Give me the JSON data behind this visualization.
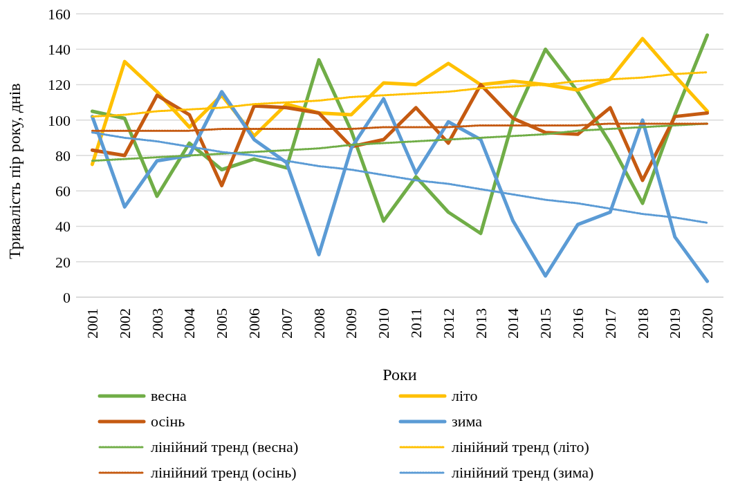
{
  "chart_data": {
    "type": "line",
    "xlabel": "Роки",
    "ylabel": "Тривалість пір року, днів",
    "categories": [
      "2001",
      "2002",
      "2003",
      "2004",
      "2005",
      "2006",
      "2007",
      "2008",
      "2009",
      "2010",
      "2011",
      "2012",
      "2013",
      "2014",
      "2015",
      "2016",
      "2017",
      "2018",
      "2019",
      "2020"
    ],
    "series": [
      {
        "name": "весна",
        "color": "#70ad47",
        "values": [
          105,
          101,
          57,
          87,
          72,
          78,
          73,
          134,
          94,
          43,
          68,
          48,
          36,
          100,
          140,
          116,
          87,
          53,
          103,
          148
        ]
      },
      {
        "name": "літо",
        "color": "#ffc000",
        "values": [
          75,
          133,
          116,
          96,
          114,
          91,
          109,
          104,
          103,
          121,
          120,
          132,
          120,
          122,
          120,
          117,
          123,
          146,
          125,
          105
        ]
      },
      {
        "name": "осінь",
        "color": "#c55a11",
        "values": [
          83,
          80,
          114,
          103,
          63,
          108,
          107,
          104,
          85,
          89,
          107,
          87,
          120,
          101,
          93,
          92,
          107,
          66,
          102,
          104
        ]
      },
      {
        "name": "зима",
        "color": "#5b9bd5",
        "values": [
          102,
          51,
          77,
          80,
          116,
          89,
          76,
          24,
          84,
          112,
          70,
          99,
          89,
          43,
          12,
          41,
          48,
          100,
          34,
          9
        ]
      },
      {
        "name": "лінійний тренд (весна)",
        "color": "#70ad47",
        "line_style": "dotted",
        "values": [
          77,
          78,
          79,
          80,
          81,
          82,
          83,
          84,
          86,
          87,
          88,
          89,
          90,
          91,
          92,
          94,
          95,
          96,
          97,
          98
        ]
      },
      {
        "name": "лінійний тренд (літо)",
        "color": "#ffc000",
        "line_style": "dotted",
        "values": [
          102,
          103,
          105,
          106,
          107,
          109,
          110,
          111,
          113,
          114,
          115,
          116,
          118,
          119,
          120,
          122,
          123,
          124,
          126,
          127
        ]
      },
      {
        "name": "лінійний тренд (осінь)",
        "color": "#c55a11",
        "line_style": "dotted",
        "values": [
          94,
          94,
          94,
          94,
          95,
          95,
          95,
          95,
          95,
          96,
          96,
          96,
          97,
          97,
          97,
          97,
          98,
          98,
          98,
          98
        ]
      },
      {
        "name": "лінійний тренд (зима)",
        "color": "#5b9bd5",
        "line_style": "dotted",
        "values": [
          93,
          90,
          88,
          85,
          82,
          80,
          77,
          74,
          72,
          69,
          66,
          64,
          61,
          58,
          55,
          53,
          50,
          47,
          45,
          42
        ]
      }
    ],
    "ylim": [
      0,
      160
    ],
    "yticks": [
      0,
      20,
      40,
      60,
      80,
      100,
      120,
      140,
      160
    ],
    "grid": "y",
    "legend": "bottom"
  }
}
